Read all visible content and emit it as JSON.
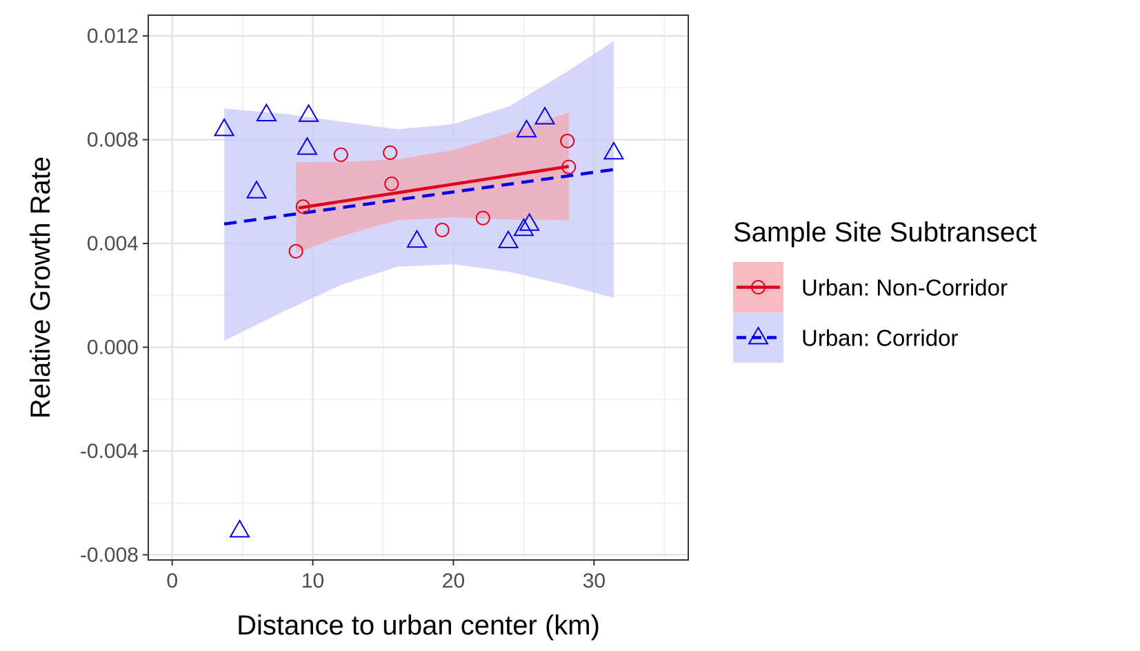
{
  "chart_data": {
    "type": "scatter",
    "title": "",
    "xlabel": "Distance to urban center (km)",
    "ylabel": "Relative Growth Rate",
    "xlim": [
      -1.7,
      36.7
    ],
    "ylim": [
      -0.0082,
      0.0128
    ],
    "x_ticks": [
      0,
      10,
      20,
      30
    ],
    "x_tick_labels": [
      "0",
      "10",
      "20",
      "30"
    ],
    "y_ticks": [
      -0.008,
      -0.004,
      0.0,
      0.004,
      0.008,
      0.012
    ],
    "y_tick_labels": [
      "-0.008",
      "-0.004",
      "0.000",
      "0.004",
      "0.008",
      "0.012"
    ],
    "grid": true,
    "legend": {
      "title": "Sample Site Subtransect",
      "position": "right"
    },
    "series": [
      {
        "name": "Urban: Non-Corridor",
        "color": "#e0001a",
        "band_color": "#f4a5ae",
        "marker": "circle",
        "line_style": "solid",
        "points": [
          {
            "x": 8.8,
            "y": 0.0037
          },
          {
            "x": 9.3,
            "y": 0.00542
          },
          {
            "x": 12.0,
            "y": 0.00742
          },
          {
            "x": 15.5,
            "y": 0.0075
          },
          {
            "x": 15.6,
            "y": 0.0063
          },
          {
            "x": 19.2,
            "y": 0.00452
          },
          {
            "x": 22.1,
            "y": 0.00498
          },
          {
            "x": 28.1,
            "y": 0.00795
          },
          {
            "x": 28.2,
            "y": 0.00695
          }
        ],
        "fit": {
          "x": [
            9.0,
            28.2
          ],
          "y": [
            0.00537,
            0.00697
          ]
        },
        "ci_band": {
          "x": [
            8.8,
            12.0,
            16.0,
            20.0,
            24.0,
            28.2
          ],
          "upper": [
            0.00713,
            0.00714,
            0.00724,
            0.0076,
            0.00826,
            0.00905
          ],
          "lower": [
            0.00362,
            0.00428,
            0.0049,
            0.005,
            0.00492,
            0.0049
          ]
        }
      },
      {
        "name": "Urban: Corridor",
        "color": "#0000ee",
        "band_color": "#c8c8fa",
        "marker": "triangle",
        "line_style": "dashed",
        "points": [
          {
            "x": 3.7,
            "y": 0.0084
          },
          {
            "x": 4.8,
            "y": -0.00707
          },
          {
            "x": 6.0,
            "y": 0.006
          },
          {
            "x": 6.7,
            "y": 0.00897
          },
          {
            "x": 9.6,
            "y": 0.00768
          },
          {
            "x": 9.7,
            "y": 0.00895
          },
          {
            "x": 17.4,
            "y": 0.0041
          },
          {
            "x": 23.9,
            "y": 0.00408
          },
          {
            "x": 25.0,
            "y": 0.00455
          },
          {
            "x": 25.4,
            "y": 0.00475
          },
          {
            "x": 25.2,
            "y": 0.00835
          },
          {
            "x": 26.5,
            "y": 0.00885
          },
          {
            "x": 31.4,
            "y": 0.0075
          }
        ],
        "fit": {
          "x": [
            3.7,
            31.4
          ],
          "y": [
            0.00475,
            0.00685
          ]
        },
        "ci_band": {
          "x": [
            3.7,
            8.0,
            12.0,
            16.0,
            20.0,
            24.0,
            28.0,
            31.4
          ],
          "upper": [
            0.0092,
            0.009,
            0.0087,
            0.0084,
            0.0086,
            0.0093,
            0.0106,
            0.0118
          ],
          "lower": [
            0.00025,
            0.0014,
            0.0024,
            0.0031,
            0.0032,
            0.0029,
            0.0024,
            0.0019
          ]
        }
      }
    ]
  }
}
